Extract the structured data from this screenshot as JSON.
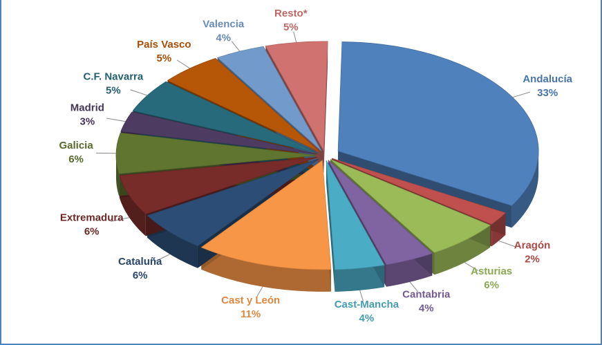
{
  "chart_data": {
    "type": "pie",
    "categories": [
      "Andalucía",
      "Aragón",
      "Asturias",
      "Cantabria",
      "Cast-Mancha",
      "Cast y León",
      "Cataluña",
      "Extremadura",
      "Galicia",
      "Madrid",
      "C.F. Navarra",
      "País Vasco",
      "Valencia",
      "Resto*"
    ],
    "values": [
      33,
      2,
      6,
      4,
      4,
      11,
      6,
      6,
      6,
      3,
      5,
      5,
      4,
      5
    ],
    "value_labels": [
      "33%",
      "2%",
      "6%",
      "4%",
      "4%",
      "11%",
      "6%",
      "6%",
      "6%",
      "3%",
      "5%",
      "5%",
      "4%",
      "5%"
    ],
    "colors": [
      "#4f81bd",
      "#c0504d",
      "#9bbb59",
      "#8064a2",
      "#4bacc6",
      "#f79646",
      "#2c4d75",
      "#772c2a",
      "#5f7530",
      "#4d3b62",
      "#276a7c",
      "#b65708",
      "#729aca",
      "#d07270"
    ]
  }
}
